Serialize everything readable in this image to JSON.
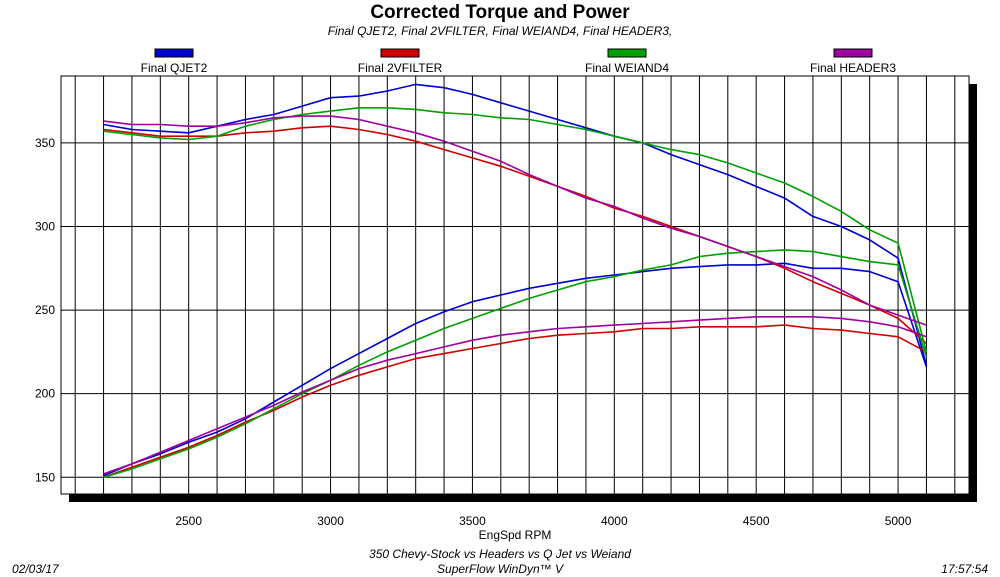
{
  "chart_data": {
    "type": "line",
    "title": "Corrected Torque and Power",
    "subtitle": "Final QJET2, Final 2VFILTER, Final WEIAND4, Final HEADER3,",
    "xlabel": "EngSpd  RPM",
    "ylabel": "",
    "xlim": [
      2050,
      5250
    ],
    "ylim": [
      140,
      390
    ],
    "x_ticks": [
      2500,
      3000,
      3500,
      4000,
      4500,
      5000
    ],
    "y_ticks": [
      150,
      200,
      250,
      300,
      350
    ],
    "grid": true,
    "legend_position": "top",
    "x": [
      2200,
      2300,
      2400,
      2500,
      2600,
      2700,
      2800,
      2900,
      3000,
      3100,
      3200,
      3300,
      3400,
      3500,
      3600,
      3700,
      3800,
      3900,
      4000,
      4100,
      4200,
      4300,
      4400,
      4500,
      4600,
      4700,
      4800,
      4900,
      5000,
      5100
    ],
    "series": [
      {
        "name": "Final QJET2",
        "color": "#0000d0",
        "torque": [
          361,
          358,
          357,
          356,
          360,
          364,
          367,
          372,
          377,
          378,
          381,
          385,
          383,
          379,
          374,
          369,
          364,
          359,
          354,
          350,
          343,
          337,
          331,
          324,
          317,
          306,
          300,
          292,
          281,
          217
        ],
        "power": [
          151,
          158,
          164,
          171,
          177,
          185,
          195,
          205,
          215,
          224,
          233,
          242,
          249,
          255,
          259,
          263,
          266,
          269,
          271,
          273,
          275,
          276,
          277,
          277,
          278,
          275,
          275,
          273,
          267,
          216
        ]
      },
      {
        "name": "Final 2VFILTER",
        "color": "#d00000",
        "torque": [
          358,
          356,
          354,
          354,
          354,
          356,
          357,
          359,
          360,
          358,
          355,
          351,
          346,
          341,
          336,
          330,
          324,
          318,
          311,
          306,
          300,
          294,
          288,
          282,
          275,
          267,
          260,
          253,
          245,
          230
        ],
        "power": [
          150,
          156,
          162,
          168,
          175,
          183,
          190,
          198,
          205,
          211,
          216,
          221,
          224,
          227,
          230,
          233,
          235,
          236,
          237,
          239,
          239,
          240,
          240,
          240,
          241,
          239,
          238,
          236,
          234,
          225
        ]
      },
      {
        "name": "Final WEIAND4",
        "color": "#00a000",
        "torque": [
          357,
          355,
          353,
          352,
          354,
          360,
          364,
          367,
          369,
          371,
          371,
          370,
          368,
          367,
          365,
          364,
          361,
          358,
          354,
          350,
          346,
          343,
          338,
          332,
          326,
          318,
          309,
          298,
          290,
          225
        ],
        "power": [
          150,
          155,
          161,
          167,
          174,
          182,
          191,
          200,
          208,
          217,
          225,
          232,
          239,
          245,
          251,
          257,
          262,
          267,
          270,
          274,
          277,
          282,
          284,
          285,
          286,
          285,
          282,
          279,
          277,
          222
        ]
      },
      {
        "name": "Final HEADER3",
        "color": "#a000a0",
        "torque": [
          363,
          361,
          361,
          360,
          360,
          362,
          365,
          366,
          366,
          364,
          360,
          356,
          351,
          345,
          339,
          331,
          324,
          317,
          312,
          305,
          299,
          294,
          288,
          282,
          276,
          270,
          262,
          253,
          247,
          241
        ],
        "power": [
          152,
          158,
          165,
          172,
          179,
          186,
          193,
          201,
          208,
          215,
          220,
          224,
          228,
          232,
          235,
          237,
          239,
          240,
          241,
          242,
          243,
          244,
          245,
          246,
          246,
          246,
          245,
          243,
          240,
          234
        ]
      }
    ]
  },
  "footer": {
    "date": "02/03/17",
    "time": "17:57:54",
    "line1": "350 Chevy-Stock vs Headers vs Q Jet vs Weiand",
    "line2": "SuperFlow WinDyn™ V"
  }
}
